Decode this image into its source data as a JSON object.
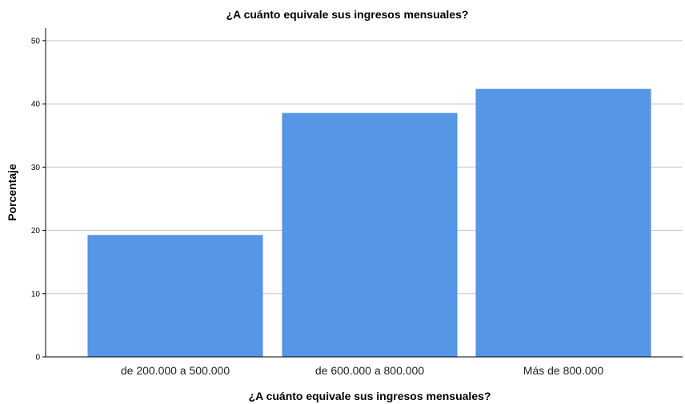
{
  "chart_data": {
    "type": "bar",
    "title": "¿A cuánto equivale sus ingresos mensuales?",
    "xlabel": "¿A cuánto equivale sus ingresos mensuales?",
    "ylabel": "Porcentaje",
    "categories": [
      "de 200.000 a 500.000",
      "de 600.000 a 800.000",
      "Más de 800.000"
    ],
    "values": [
      19.2,
      38.5,
      42.3
    ],
    "ylim": [
      0,
      52
    ],
    "yticks": [
      0,
      10,
      20,
      30,
      40,
      50
    ],
    "grid": true,
    "legend": "none",
    "colors": {
      "bar": "#5596e6",
      "bar_edge": "#4f8fe0",
      "grid": "#c8c8c8",
      "axis": "#000000"
    }
  }
}
